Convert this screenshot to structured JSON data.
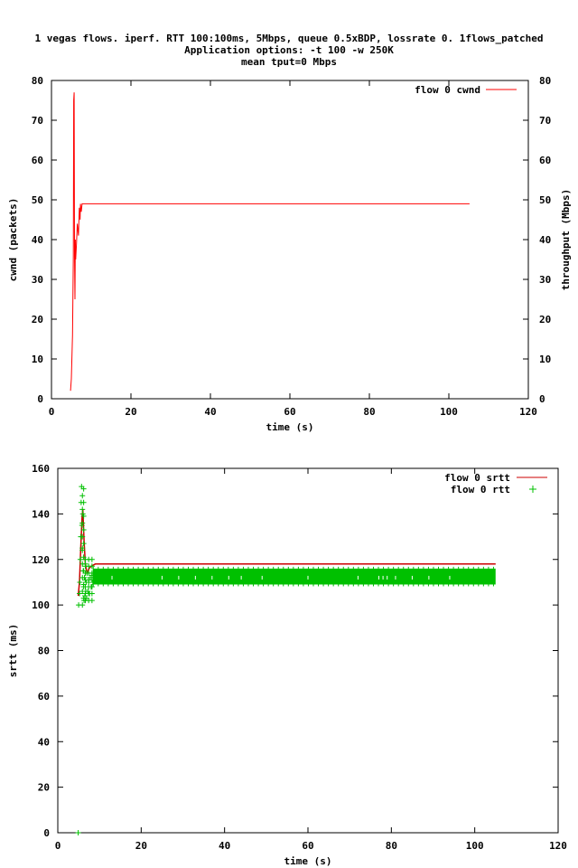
{
  "header": {
    "title_line1": "1 vegas flows. iperf. RTT 100:100ms, 5Mbps, queue 0.5xBDP, lossrate 0. 1flows_patched",
    "title_line2": "Application options: -t 100 -w 250K",
    "title_line3": "mean tput=0 Mbps"
  },
  "colors": {
    "cwnd": "#ff0000",
    "srtt": "#cc0000",
    "rtt": "#00c000"
  },
  "chart_data": [
    {
      "type": "line",
      "xlabel": "time (s)",
      "ylabel": "cwnd (packets)",
      "y2label": "throughput (Mbps)",
      "xlim": [
        0,
        120
      ],
      "ylim": [
        0,
        80
      ],
      "y2lim": [
        0,
        80
      ],
      "xticks": [
        0,
        20,
        40,
        60,
        80,
        100,
        120
      ],
      "yticks": [
        0,
        10,
        20,
        30,
        40,
        50,
        60,
        70,
        80
      ],
      "y2ticks": [
        0,
        10,
        20,
        30,
        40,
        50,
        60,
        70,
        80
      ],
      "legend_position": "top-right",
      "series": [
        {
          "name": "flow 0 cwnd",
          "x": [
            4.8,
            5.0,
            5.3,
            5.5,
            5.6,
            5.7,
            5.8,
            5.9,
            6.0,
            6.1,
            6.3,
            6.5,
            6.8,
            7.0,
            7.2,
            7.3,
            7.5,
            7.7,
            8.0,
            10,
            20,
            40,
            60,
            80,
            100,
            105.2
          ],
          "y": [
            2,
            5,
            16,
            36,
            75,
            77,
            36,
            25,
            40,
            35,
            39,
            44,
            41,
            48,
            45,
            49,
            47,
            49,
            49,
            49,
            49,
            49,
            49,
            49,
            49,
            49
          ]
        }
      ]
    },
    {
      "type": "scatter",
      "xlabel": "time (s)",
      "ylabel": "srtt (ms)",
      "xlim": [
        0,
        120
      ],
      "ylim": [
        0,
        160
      ],
      "xticks": [
        0,
        20,
        40,
        60,
        80,
        100,
        120
      ],
      "yticks": [
        0,
        20,
        40,
        60,
        80,
        100,
        120,
        140,
        160
      ],
      "legend_position": "top-right",
      "series": [
        {
          "name": "flow 0 srtt",
          "style": "line",
          "x": [
            4.9,
            5.2,
            5.5,
            5.8,
            6.0,
            6.3,
            6.6,
            7.0,
            7.5,
            8.0,
            9.0,
            10,
            20,
            40,
            60,
            80,
            100,
            105
          ],
          "y": [
            104,
            110,
            125,
            138,
            142,
            128,
            118,
            114,
            116,
            117,
            118,
            118,
            118,
            118,
            118,
            118,
            118,
            118
          ]
        },
        {
          "name": "flow 0 rtt",
          "style": "points",
          "x": [
            4.9,
            5.0,
            5.2,
            5.3,
            5.4,
            5.5,
            5.6,
            5.7,
            5.8,
            5.9,
            6.0,
            6.1,
            6.2,
            6.3,
            6.4,
            6.5,
            6.6,
            6.7,
            6.8,
            6.9,
            7.0,
            7.2,
            7.4,
            7.6,
            7.8,
            8.0,
            8.2,
            8.4
          ],
          "y": [
            0,
            100,
            105,
            110,
            120,
            130,
            145,
            152,
            135,
            125,
            140,
            115,
            108,
            102,
            112,
            104,
            118,
            106,
            110,
            103,
            114,
            106,
            110,
            105,
            112,
            108,
            113,
            110
          ],
          "band": {
            "x_start": 8.5,
            "x_end": 105,
            "y_low": 109,
            "y_high": 116
          },
          "sparse_x": [
            13,
            25,
            29,
            33,
            37,
            41,
            44,
            49,
            60,
            72,
            77,
            78,
            79,
            81,
            85,
            89,
            94
          ],
          "sparse_y": 112
        }
      ]
    }
  ]
}
